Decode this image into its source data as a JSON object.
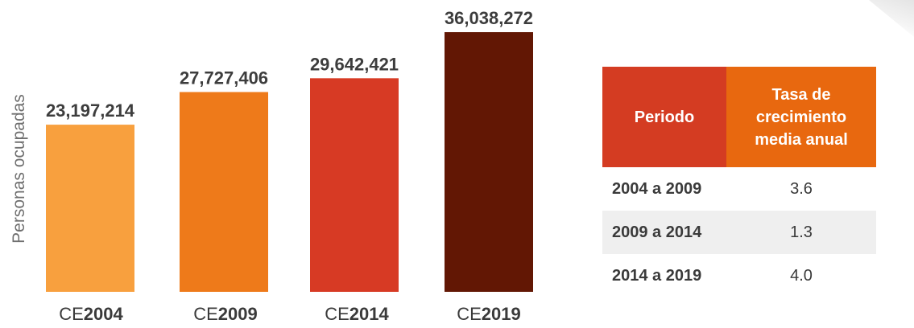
{
  "chart_data": {
    "type": "bar",
    "ylabel": "Personas ocupadas",
    "categories": [
      {
        "prefix": "CE",
        "year": "2004"
      },
      {
        "prefix": "CE",
        "year": "2009"
      },
      {
        "prefix": "CE",
        "year": "2014"
      },
      {
        "prefix": "CE",
        "year": "2019"
      }
    ],
    "values": [
      23197214,
      27727406,
      29642421,
      36038272
    ],
    "value_labels": [
      "23,197,214",
      "27,727,406",
      "29,642,421",
      "36,038,272"
    ],
    "colors": [
      "#f8a03e",
      "#ee7a1a",
      "#d73a24",
      "#621704"
    ],
    "ylim": [
      0,
      36038272
    ],
    "grid": false
  },
  "table": {
    "headers": [
      "Periodo",
      "Tasa de crecimiento media anual"
    ],
    "header_colors": [
      "#d43c22",
      "#e8680f"
    ],
    "rows": [
      {
        "period": "2004 a 2009",
        "rate": "3.6"
      },
      {
        "period": "2009 a 2014",
        "rate": "1.3"
      },
      {
        "period": "2014 a 2019",
        "rate": "4.0"
      }
    ]
  }
}
